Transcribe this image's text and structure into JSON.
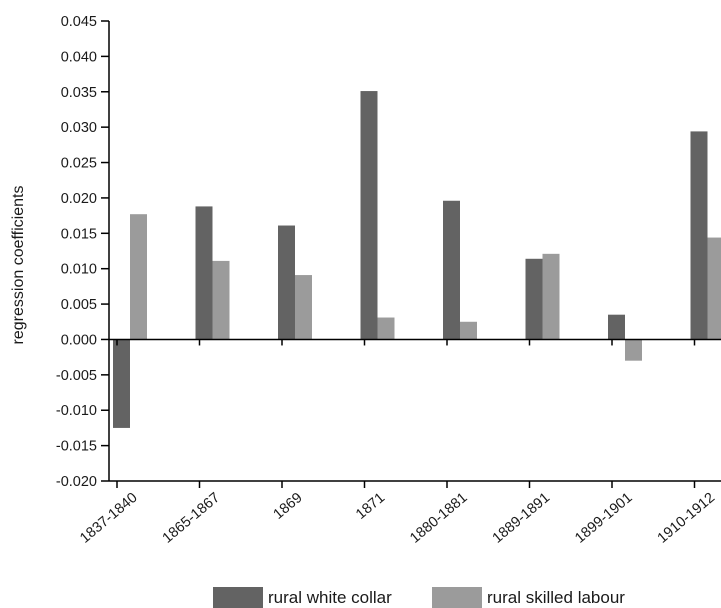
{
  "chart_data": {
    "type": "bar",
    "title": "",
    "xlabel": "",
    "ylabel": "regression coefficients",
    "ylim": [
      -0.02,
      0.045
    ],
    "yticks": [
      "0.045",
      "0.040",
      "0.035",
      "0.030",
      "0.025",
      "0.020",
      "0.015",
      "0.010",
      "0.005",
      "0.000",
      "-0.005",
      "-0.010",
      "-0.015",
      "-0.020"
    ],
    "grid": false,
    "legend_position": "bottom",
    "categories": [
      "1837-1840",
      "1865-1867",
      "1869",
      "1871",
      "1880-1881",
      "1889-1891",
      "1899-1901",
      "1910-1912"
    ],
    "series": [
      {
        "name": "rural white collar",
        "color": "#636363",
        "values": [
          -0.0125,
          0.0188,
          0.0161,
          0.0351,
          0.0196,
          0.0114,
          0.0035,
          0.0294
        ]
      },
      {
        "name": "rural skilled labour",
        "color": "#9b9b9b",
        "values": [
          0.0177,
          0.0111,
          0.0091,
          0.0031,
          0.0025,
          0.0121,
          -0.003,
          0.0144
        ]
      }
    ]
  }
}
